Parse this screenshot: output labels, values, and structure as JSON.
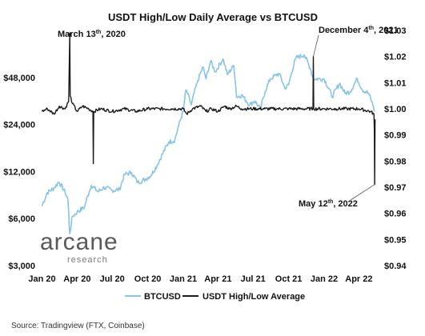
{
  "chart_data": {
    "type": "line",
    "title": "USDT High/Low Daily Average vs BTCUSD",
    "x_tick_labels": [
      "Jan 20",
      "Apr 20",
      "Jul 20",
      "Oct 20",
      "Jan 21",
      "Apr 21",
      "Jul 21",
      "Oct 21",
      "Jan 22",
      "Apr 22"
    ],
    "x_tick_dates": [
      "2020-01-01",
      "2020-04-01",
      "2020-07-01",
      "2020-10-01",
      "2021-01-01",
      "2021-04-01",
      "2021-07-01",
      "2021-10-01",
      "2022-01-01",
      "2022-04-01"
    ],
    "x_range": [
      "2019-12-31",
      "2022-05-20"
    ],
    "y_left": {
      "scale": "log",
      "range": [
        3000,
        96000
      ],
      "ticks": [
        3000,
        6000,
        12000,
        24000,
        48000
      ],
      "tick_labels": [
        "$3,000",
        "$6,000",
        "$12,000",
        "$24,000",
        "$48,000"
      ]
    },
    "y_right": {
      "scale": "linear",
      "range": [
        0.94,
        1.03
      ],
      "ticks": [
        0.94,
        0.95,
        0.96,
        0.97,
        0.98,
        0.99,
        1.0,
        1.01,
        1.02,
        1.03
      ],
      "tick_labels": [
        "$0.94",
        "$0.95",
        "$0.96",
        "$0.97",
        "$0.98",
        "$0.99",
        "$1.00",
        "$1.01",
        "$1.02",
        "$1.03"
      ]
    },
    "grid": false,
    "legend_position": "bottom-center",
    "series": [
      {
        "name": "BTCUSD",
        "axis": "left",
        "color": "#86c5e7",
        "x": [
          "2020-01-01",
          "2020-01-15",
          "2020-02-01",
          "2020-02-14",
          "2020-03-01",
          "2020-03-08",
          "2020-03-12",
          "2020-03-13",
          "2020-03-20",
          "2020-04-01",
          "2020-04-20",
          "2020-05-08",
          "2020-05-25",
          "2020-06-10",
          "2020-07-01",
          "2020-07-20",
          "2020-08-02",
          "2020-08-20",
          "2020-09-05",
          "2020-09-25",
          "2020-10-10",
          "2020-10-25",
          "2020-11-08",
          "2020-11-25",
          "2020-12-10",
          "2020-12-20",
          "2021-01-01",
          "2021-01-08",
          "2021-01-22",
          "2021-02-08",
          "2021-02-21",
          "2021-03-01",
          "2021-03-13",
          "2021-03-25",
          "2021-04-14",
          "2021-04-25",
          "2021-05-12",
          "2021-05-19",
          "2021-06-01",
          "2021-06-22",
          "2021-07-05",
          "2021-07-20",
          "2021-08-01",
          "2021-08-15",
          "2021-09-06",
          "2021-09-21",
          "2021-10-01",
          "2021-10-20",
          "2021-11-10",
          "2021-11-26",
          "2021-12-04",
          "2021-12-20",
          "2022-01-01",
          "2022-01-22",
          "2022-02-10",
          "2022-02-24",
          "2022-03-10",
          "2022-03-28",
          "2022-04-10",
          "2022-04-26",
          "2022-05-09",
          "2022-05-12"
        ],
        "values": [
          7200,
          8800,
          9400,
          10300,
          8800,
          8000,
          5100,
          4800,
          6200,
          6600,
          7100,
          9800,
          8900,
          9500,
          9100,
          9200,
          11500,
          11800,
          10200,
          10700,
          11400,
          13100,
          15500,
          18600,
          19000,
          23500,
          29000,
          40000,
          32000,
          46000,
          56000,
          47000,
          61000,
          52000,
          63000,
          50000,
          57000,
          36000,
          37000,
          32000,
          34000,
          30000,
          39000,
          47000,
          51000,
          41000,
          43000,
          64000,
          67000,
          55000,
          47000,
          47000,
          47000,
          36000,
          44000,
          38000,
          39000,
          47000,
          40000,
          38000,
          31000,
          29000
        ]
      },
      {
        "name": "USDT High/Low Average",
        "axis": "right",
        "color": "#1a1a1a",
        "x": [
          "2020-01-01",
          "2020-01-15",
          "2020-02-01",
          "2020-02-15",
          "2020-03-01",
          "2020-03-10",
          "2020-03-13",
          "2020-03-14",
          "2020-03-20",
          "2020-04-01",
          "2020-04-15",
          "2020-05-01",
          "2020-05-12",
          "2020-05-13",
          "2020-05-14",
          "2020-06-01",
          "2020-07-01",
          "2020-08-01",
          "2020-09-01",
          "2020-10-01",
          "2020-11-01",
          "2020-12-01",
          "2021-01-01",
          "2021-01-10",
          "2021-01-25",
          "2021-02-15",
          "2021-03-01",
          "2021-03-15",
          "2021-04-01",
          "2021-04-18",
          "2021-05-01",
          "2021-05-19",
          "2021-06-01",
          "2021-07-01",
          "2021-08-01",
          "2021-09-01",
          "2021-10-01",
          "2021-11-01",
          "2021-12-03",
          "2021-12-04",
          "2021-12-05",
          "2022-01-01",
          "2022-02-01",
          "2022-03-01",
          "2022-04-01",
          "2022-05-01",
          "2022-05-10",
          "2022-05-11",
          "2022-05-12",
          "2022-05-13"
        ],
        "values": [
          0.999,
          1.0,
          0.998,
          1.001,
          1.0,
          1.003,
          1.029,
          1.005,
          1.002,
          0.999,
          1.001,
          1.0,
          0.999,
          0.979,
          0.999,
          1.0,
          0.999,
          1.0,
          0.999,
          1.0,
          1.0,
          1.0,
          1.0,
          0.998,
          1.0,
          1.001,
          0.999,
          1.0,
          0.999,
          1.001,
          1.0,
          1.001,
          1.0,
          1.0,
          1.0,
          1.0,
          1.0,
          1.0,
          1.0,
          1.02,
          1.0,
          1.0,
          1.0,
          1.0,
          1.0,
          0.999,
          0.998,
          0.992,
          0.971,
          0.996
        ]
      }
    ],
    "annotations": [
      {
        "base": "March 13",
        "sup": "th",
        "tail": ", 2020",
        "x": "2020-03-13",
        "y": 1.029,
        "axis": "right"
      },
      {
        "base": "December 4",
        "sup": "th",
        "tail": ", 2021",
        "x": "2021-12-04",
        "y": 1.02,
        "axis": "right"
      },
      {
        "base": "May 12",
        "sup": "th",
        "tail": ", 2022",
        "x": "2022-05-12",
        "y": 0.971,
        "axis": "right"
      }
    ]
  },
  "brand": {
    "name": "arcane",
    "sub": "research"
  },
  "source": "Source: Tradingview (FTX, Coinbase)"
}
